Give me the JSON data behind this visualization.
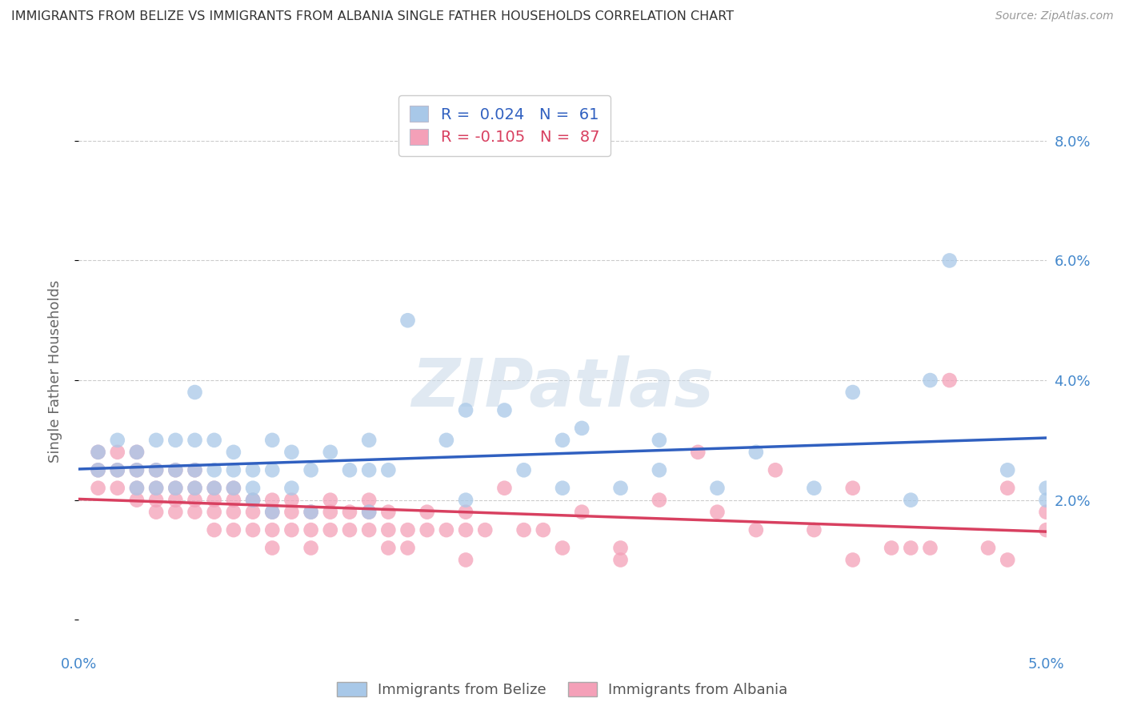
{
  "title": "IMMIGRANTS FROM BELIZE VS IMMIGRANTS FROM ALBANIA SINGLE FATHER HOUSEHOLDS CORRELATION CHART",
  "source": "Source: ZipAtlas.com",
  "ylabel": "Single Father Households",
  "y_ticks": [
    0.0,
    0.02,
    0.04,
    0.06,
    0.08
  ],
  "y_tick_labels": [
    "",
    "2.0%",
    "4.0%",
    "6.0%",
    "8.0%"
  ],
  "xlim": [
    0.0,
    0.05
  ],
  "ylim": [
    -0.005,
    0.088
  ],
  "legend_belize_R": "0.024",
  "legend_belize_N": "61",
  "legend_albania_R": "-0.105",
  "legend_albania_N": "87",
  "color_belize": "#a8c8e8",
  "color_albania": "#f4a0b8",
  "line_color_belize": "#3060c0",
  "line_color_albania": "#d84060",
  "watermark_text": "ZIPatlas",
  "belize_x": [
    0.001,
    0.001,
    0.002,
    0.002,
    0.003,
    0.003,
    0.003,
    0.004,
    0.004,
    0.004,
    0.005,
    0.005,
    0.005,
    0.006,
    0.006,
    0.006,
    0.006,
    0.007,
    0.007,
    0.007,
    0.008,
    0.008,
    0.008,
    0.009,
    0.009,
    0.009,
    0.01,
    0.01,
    0.011,
    0.011,
    0.012,
    0.013,
    0.014,
    0.015,
    0.015,
    0.016,
    0.017,
    0.019,
    0.02,
    0.022,
    0.023,
    0.025,
    0.026,
    0.028,
    0.03,
    0.033,
    0.035,
    0.038,
    0.04,
    0.043,
    0.044,
    0.045,
    0.048,
    0.05,
    0.05,
    0.03,
    0.025,
    0.02,
    0.015,
    0.012,
    0.01
  ],
  "belize_y": [
    0.028,
    0.025,
    0.03,
    0.025,
    0.028,
    0.025,
    0.022,
    0.03,
    0.025,
    0.022,
    0.03,
    0.025,
    0.022,
    0.038,
    0.03,
    0.025,
    0.022,
    0.03,
    0.025,
    0.022,
    0.028,
    0.025,
    0.022,
    0.025,
    0.022,
    0.02,
    0.03,
    0.025,
    0.028,
    0.022,
    0.025,
    0.028,
    0.025,
    0.03,
    0.025,
    0.025,
    0.05,
    0.03,
    0.035,
    0.035,
    0.025,
    0.03,
    0.032,
    0.022,
    0.03,
    0.022,
    0.028,
    0.022,
    0.038,
    0.02,
    0.04,
    0.06,
    0.025,
    0.02,
    0.022,
    0.025,
    0.022,
    0.02,
    0.018,
    0.018,
    0.018
  ],
  "albania_x": [
    0.001,
    0.001,
    0.001,
    0.002,
    0.002,
    0.002,
    0.003,
    0.003,
    0.003,
    0.003,
    0.004,
    0.004,
    0.004,
    0.004,
    0.005,
    0.005,
    0.005,
    0.005,
    0.006,
    0.006,
    0.006,
    0.006,
    0.007,
    0.007,
    0.007,
    0.007,
    0.008,
    0.008,
    0.008,
    0.008,
    0.009,
    0.009,
    0.009,
    0.01,
    0.01,
    0.01,
    0.01,
    0.011,
    0.011,
    0.011,
    0.012,
    0.012,
    0.012,
    0.013,
    0.013,
    0.013,
    0.014,
    0.014,
    0.015,
    0.015,
    0.015,
    0.016,
    0.016,
    0.016,
    0.017,
    0.017,
    0.018,
    0.018,
    0.019,
    0.02,
    0.02,
    0.021,
    0.022,
    0.023,
    0.024,
    0.025,
    0.026,
    0.028,
    0.03,
    0.032,
    0.033,
    0.035,
    0.036,
    0.038,
    0.04,
    0.042,
    0.043,
    0.044,
    0.045,
    0.047,
    0.048,
    0.05,
    0.05,
    0.048,
    0.04,
    0.028,
    0.02
  ],
  "albania_y": [
    0.028,
    0.025,
    0.022,
    0.028,
    0.025,
    0.022,
    0.028,
    0.025,
    0.022,
    0.02,
    0.025,
    0.022,
    0.02,
    0.018,
    0.025,
    0.022,
    0.02,
    0.018,
    0.025,
    0.022,
    0.02,
    0.018,
    0.022,
    0.02,
    0.018,
    0.015,
    0.022,
    0.02,
    0.018,
    0.015,
    0.02,
    0.018,
    0.015,
    0.02,
    0.018,
    0.015,
    0.012,
    0.02,
    0.018,
    0.015,
    0.018,
    0.015,
    0.012,
    0.02,
    0.018,
    0.015,
    0.018,
    0.015,
    0.02,
    0.018,
    0.015,
    0.018,
    0.015,
    0.012,
    0.015,
    0.012,
    0.018,
    0.015,
    0.015,
    0.018,
    0.015,
    0.015,
    0.022,
    0.015,
    0.015,
    0.012,
    0.018,
    0.01,
    0.02,
    0.028,
    0.018,
    0.015,
    0.025,
    0.015,
    0.022,
    0.012,
    0.012,
    0.012,
    0.04,
    0.012,
    0.022,
    0.018,
    0.015,
    0.01,
    0.01,
    0.012,
    0.01
  ]
}
